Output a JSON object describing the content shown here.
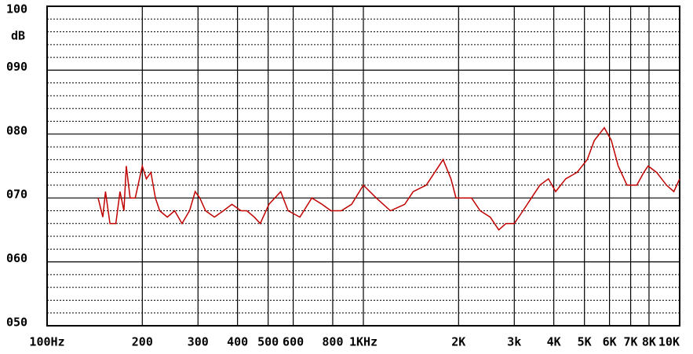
{
  "chart_data": {
    "type": "line",
    "y_label": "dB",
    "x": [
      145,
      150,
      153,
      158,
      165,
      170,
      175,
      178,
      183,
      190,
      200,
      206,
      213,
      220,
      227,
      240,
      253,
      267,
      282,
      294,
      304,
      317,
      338,
      361,
      384,
      410,
      428,
      452,
      472,
      503,
      548,
      578,
      630,
      687,
      740,
      790,
      851,
      918,
      1000,
      1098,
      1218,
      1351,
      1437,
      1580,
      1787,
      1892,
      1962,
      2066,
      2198,
      2340,
      2517,
      2680,
      2822,
      3000,
      3196,
      3398,
      3615,
      3848,
      4054,
      4362,
      4740,
      5100,
      5374,
      5777,
      6082,
      6394,
      6817,
      7320,
      7700,
      7950,
      8454,
      9088,
      9584,
      10000
    ],
    "values": [
      70,
      67,
      71,
      66,
      66,
      71,
      68,
      75,
      70,
      70,
      75,
      73,
      74,
      70,
      68,
      67,
      68,
      66,
      68,
      71,
      70,
      68,
      67,
      68,
      69,
      68,
      68,
      67,
      66,
      69,
      71,
      68,
      67,
      70,
      69,
      68,
      68,
      69,
      72,
      70,
      68,
      69,
      71,
      72,
      76,
      73,
      70,
      70,
      70,
      68,
      67,
      65,
      66,
      66,
      68,
      70,
      72,
      73,
      71,
      73,
      74,
      76,
      79,
      81,
      79,
      75,
      72,
      72,
      74,
      75,
      74,
      72,
      71,
      73
    ],
    "color": "#c00000",
    "xscale": "log",
    "xlim": [
      100,
      10000
    ],
    "xticks": [
      {
        "value": 100,
        "label": "100Hz"
      },
      200,
      300,
      400,
      500,
      600,
      800,
      {
        "value": 1000,
        "label": "1KHz"
      },
      {
        "value": 2000,
        "label": "2K"
      },
      {
        "value": 3000,
        "label": "3k"
      },
      {
        "value": 4000,
        "label": "4K"
      },
      {
        "value": 5000,
        "label": "5K"
      },
      {
        "value": 6000,
        "label": "6K"
      },
      {
        "value": 7000,
        "label": "7K"
      },
      {
        "value": 8000,
        "label": "8K"
      },
      {
        "value": 10000,
        "label": "10K"
      }
    ],
    "ylim": [
      50,
      100
    ],
    "yticks": [
      {
        "value": 50,
        "label": "050"
      },
      {
        "value": 60,
        "label": "060"
      },
      {
        "value": 70,
        "label": "070"
      },
      {
        "value": 80,
        "label": "080"
      },
      {
        "value": 90,
        "label": "090"
      },
      100
    ],
    "grid": true
  }
}
